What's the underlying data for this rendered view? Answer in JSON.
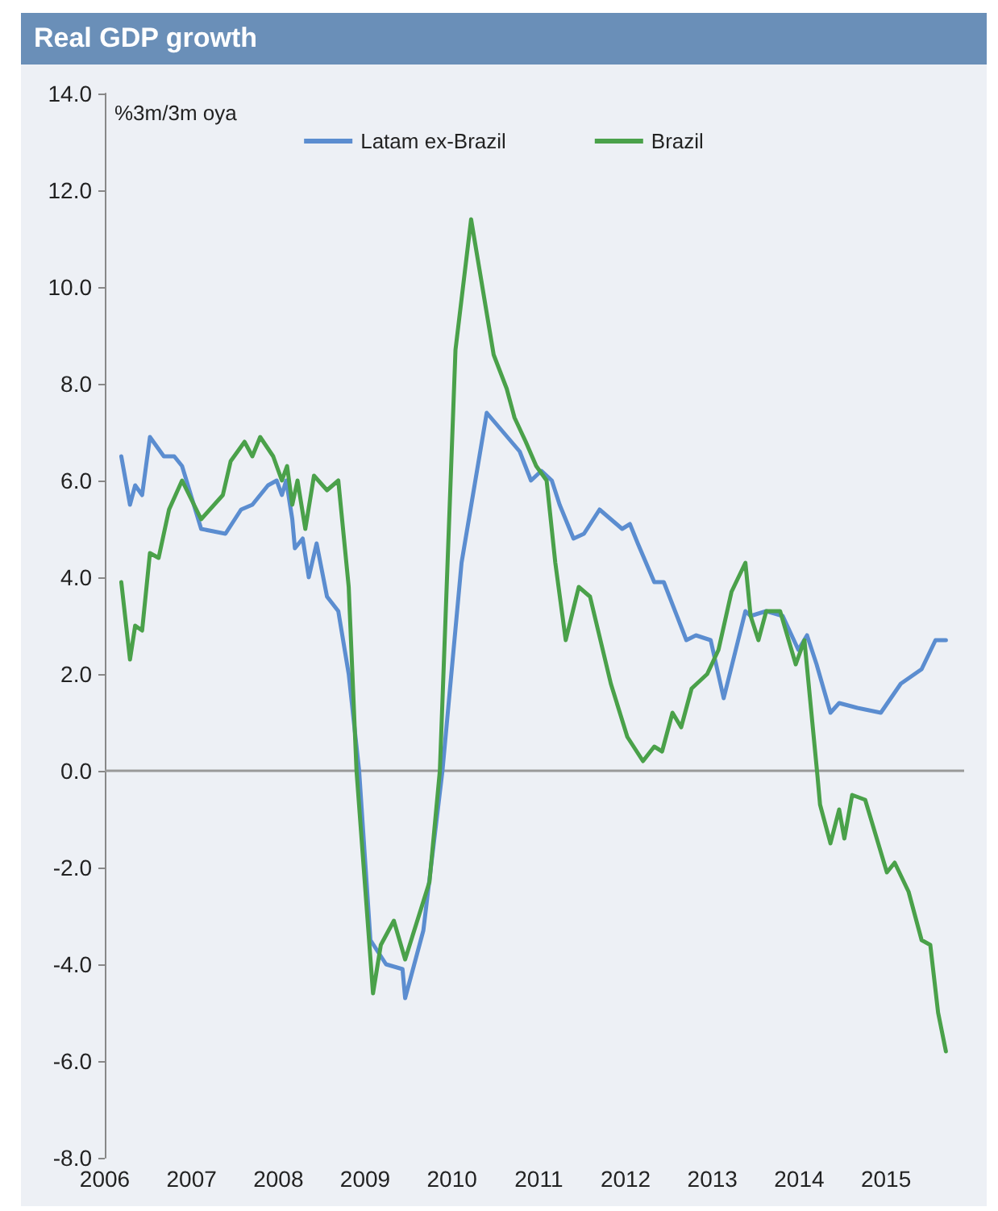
{
  "chart_data": {
    "type": "line",
    "title": "Real GDP growth",
    "ylabel": "%3m/3m oya",
    "legend": "top",
    "grid": false,
    "marker": "none",
    "line_style": "solid",
    "xlim": [
      2006,
      2015.9
    ],
    "xticks": [
      2006,
      2007,
      2008,
      2009,
      2010,
      2011,
      2012,
      2013,
      2014,
      2015
    ],
    "ylim": [
      -8,
      14
    ],
    "yticks": [
      {
        "value": -8,
        "label": "-8.0"
      },
      {
        "value": -6,
        "label": "-6.0"
      },
      {
        "value": -4,
        "label": "-4.0"
      },
      {
        "value": -2,
        "label": "-2.0"
      },
      {
        "value": 0,
        "label": "0.0"
      },
      {
        "value": 2,
        "label": "2.0"
      },
      {
        "value": 4,
        "label": "4.0"
      },
      {
        "value": 6,
        "label": "6.0"
      },
      {
        "value": 8,
        "label": "8.0"
      },
      {
        "value": 10,
        "label": "10.0"
      },
      {
        "value": 12,
        "label": "12.0"
      },
      {
        "value": 14,
        "label": "14.0"
      }
    ],
    "ref_lines": [
      {
        "axis": "y",
        "value": 0,
        "color": "#999999"
      }
    ],
    "series": [
      {
        "name": "Latam ex-Brazil",
        "color": "#5b8dd0",
        "x": [
          2006.19,
          2006.29,
          2006.35,
          2006.43,
          2006.52,
          2006.68,
          2006.8,
          2006.89,
          2007.11,
          2007.39,
          2007.57,
          2007.7,
          2007.88,
          2007.98,
          2008.04,
          2008.09,
          2008.16,
          2008.19,
          2008.28,
          2008.35,
          2008.44,
          2008.56,
          2008.69,
          2008.81,
          2008.93,
          2009.06,
          2009.24,
          2009.43,
          2009.46,
          2009.67,
          2009.89,
          2010.11,
          2010.4,
          2010.59,
          2010.78,
          2010.91,
          2011.03,
          2011.15,
          2011.24,
          2011.4,
          2011.52,
          2011.7,
          2011.96,
          2012.05,
          2012.14,
          2012.33,
          2012.44,
          2012.7,
          2012.81,
          2012.98,
          2013.13,
          2013.38,
          2013.44,
          2013.62,
          2013.81,
          2013.99,
          2014.09,
          2014.2,
          2014.36,
          2014.46,
          2014.67,
          2014.94,
          2015.17,
          2015.41,
          2015.57,
          2015.69
        ],
        "values": [
          6.5,
          5.5,
          5.9,
          5.7,
          6.9,
          6.5,
          6.5,
          6.3,
          5.0,
          4.9,
          5.4,
          5.5,
          5.9,
          6.0,
          5.7,
          6.0,
          5.2,
          4.6,
          4.8,
          4.0,
          4.7,
          3.6,
          3.3,
          2.0,
          0.0,
          -3.5,
          -4.0,
          -4.1,
          -4.7,
          -3.3,
          0.0,
          4.3,
          7.4,
          7.0,
          6.6,
          6.0,
          6.2,
          6.0,
          5.5,
          4.8,
          4.9,
          5.4,
          5.0,
          5.1,
          4.7,
          3.9,
          3.9,
          2.7,
          2.8,
          2.7,
          1.5,
          3.3,
          3.2,
          3.3,
          3.2,
          2.5,
          2.8,
          2.2,
          1.2,
          1.4,
          1.3,
          1.2,
          1.8,
          2.1,
          2.7,
          2.7
        ]
      },
      {
        "name": "Brazil",
        "color": "#4aa14a",
        "x": [
          2006.19,
          2006.29,
          2006.35,
          2006.43,
          2006.52,
          2006.62,
          2006.74,
          2006.89,
          2007.11,
          2007.36,
          2007.45,
          2007.61,
          2007.7,
          2007.79,
          2007.94,
          2008.04,
          2008.1,
          2008.16,
          2008.22,
          2008.31,
          2008.41,
          2008.56,
          2008.69,
          2008.81,
          2008.9,
          2009.09,
          2009.18,
          2009.33,
          2009.46,
          2009.74,
          2009.86,
          2010.04,
          2010.22,
          2010.48,
          2010.63,
          2010.72,
          2010.85,
          2010.97,
          2011.09,
          2011.19,
          2011.31,
          2011.46,
          2011.59,
          2011.71,
          2011.83,
          2012.02,
          2012.2,
          2012.33,
          2012.42,
          2012.54,
          2012.64,
          2012.76,
          2012.94,
          2013.07,
          2013.22,
          2013.38,
          2013.44,
          2013.53,
          2013.62,
          2013.78,
          2013.96,
          2014.06,
          2014.21,
          2014.24,
          2014.36,
          2014.46,
          2014.52,
          2014.61,
          2014.76,
          2015.01,
          2015.1,
          2015.26,
          2015.41,
          2015.51,
          2015.6,
          2015.69
        ],
        "values": [
          3.9,
          2.3,
          3.0,
          2.9,
          4.5,
          4.4,
          5.4,
          6.0,
          5.2,
          5.7,
          6.4,
          6.8,
          6.5,
          6.9,
          6.5,
          6.0,
          6.3,
          5.5,
          6.0,
          5.0,
          6.1,
          5.8,
          6.0,
          3.8,
          0.0,
          -4.6,
          -3.6,
          -3.1,
          -3.9,
          -2.3,
          0.0,
          8.7,
          11.4,
          8.6,
          7.9,
          7.3,
          6.8,
          6.3,
          6.0,
          4.3,
          2.7,
          3.8,
          3.6,
          2.7,
          1.8,
          0.7,
          0.2,
          0.5,
          0.4,
          1.2,
          0.9,
          1.7,
          2.0,
          2.5,
          3.7,
          4.3,
          3.2,
          2.7,
          3.3,
          3.3,
          2.2,
          2.7,
          -0.1,
          -0.7,
          -1.5,
          -0.8,
          -1.4,
          -0.5,
          -0.6,
          -2.1,
          -1.9,
          -2.5,
          -3.5,
          -3.6,
          -5.0,
          -5.8
        ]
      }
    ]
  }
}
